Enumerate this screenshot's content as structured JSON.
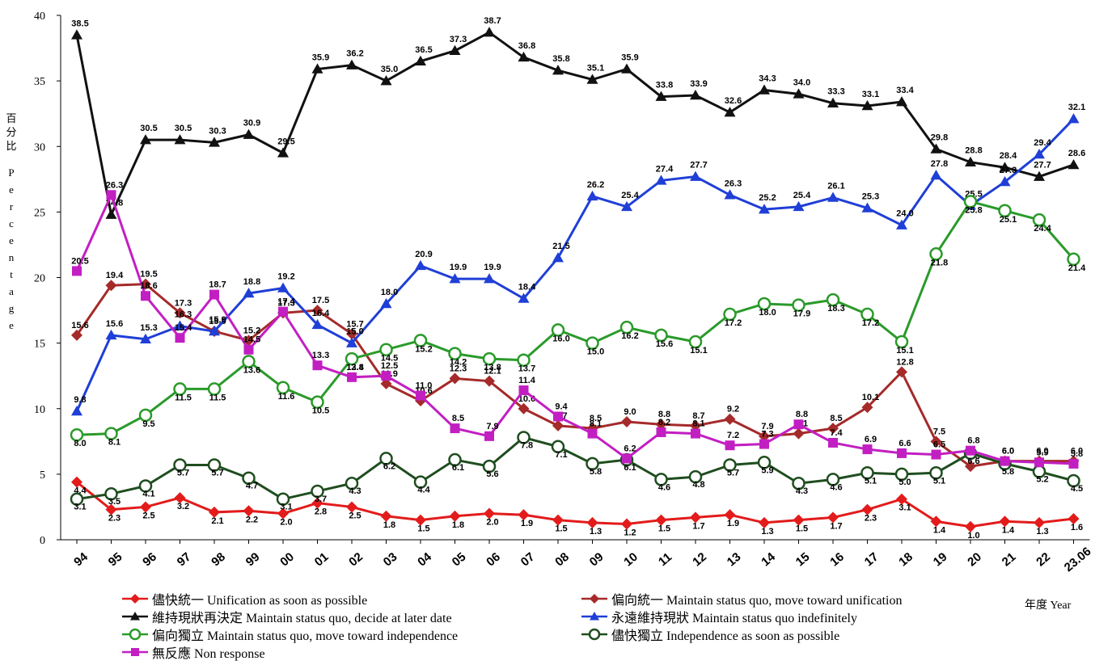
{
  "chart_data": {
    "type": "line",
    "ylabel_cn": "百分比",
    "ylabel": "Percentage",
    "xlabel": "年度 Year",
    "ylim": [
      0,
      40
    ],
    "yticks": [
      0,
      5,
      10,
      15,
      20,
      25,
      30,
      35,
      40
    ],
    "grid": false,
    "legend_position": "bottom",
    "categories": [
      "94",
      "95",
      "96",
      "97",
      "98",
      "99",
      "00",
      "01",
      "02",
      "03",
      "04",
      "05",
      "06",
      "07",
      "08",
      "09",
      "10",
      "11",
      "12",
      "13",
      "14",
      "15",
      "16",
      "17",
      "18",
      "19",
      "20",
      "21",
      "22",
      "23.06"
    ],
    "series": [
      {
        "name": "儘快統一 Unification as soon as possible",
        "color": "#e31b1b",
        "marker": "diamond",
        "values": [
          4.4,
          2.3,
          2.5,
          3.2,
          2.1,
          2.2,
          2.0,
          2.8,
          2.5,
          1.8,
          1.5,
          1.8,
          2.0,
          1.9,
          1.5,
          1.3,
          1.2,
          1.5,
          1.7,
          1.9,
          1.3,
          1.5,
          1.7,
          2.3,
          3.1,
          1.4,
          1.0,
          1.4,
          1.3,
          1.6
        ]
      },
      {
        "name": "偏向統一 Maintain status quo, move toward unification",
        "color": "#a52a2a",
        "marker": "diamond",
        "values": [
          15.6,
          19.4,
          19.5,
          17.3,
          15.9,
          15.2,
          17.3,
          17.5,
          15.7,
          11.9,
          10.6,
          12.3,
          12.1,
          10.0,
          8.7,
          8.5,
          9.0,
          8.8,
          8.7,
          9.2,
          7.9,
          8.1,
          8.5,
          10.1,
          12.8,
          7.5,
          5.6,
          6.0,
          6.0,
          6.0
        ]
      },
      {
        "name": "維持現狀再決定 Maintain status quo, decide at later date",
        "color": "#111111",
        "marker": "triangle",
        "values": [
          38.5,
          24.8,
          30.5,
          30.5,
          30.3,
          30.9,
          29.5,
          35.9,
          36.2,
          35.0,
          36.5,
          37.3,
          38.7,
          36.8,
          35.8,
          35.1,
          35.9,
          33.8,
          33.9,
          32.6,
          34.3,
          34.0,
          33.3,
          33.1,
          33.4,
          29.8,
          28.8,
          28.4,
          27.7,
          28.6
        ]
      },
      {
        "name": "永遠維持現狀 Maintain status quo indefinitely",
        "color": "#1f3fd6",
        "marker": "triangle",
        "values": [
          9.8,
          15.6,
          15.3,
          16.3,
          15.9,
          18.8,
          19.2,
          16.4,
          15.0,
          18.0,
          20.9,
          19.9,
          19.9,
          18.4,
          21.5,
          26.2,
          25.4,
          27.4,
          27.7,
          26.3,
          25.2,
          25.4,
          26.1,
          25.3,
          24.0,
          27.8,
          25.5,
          27.3,
          29.4,
          32.1
        ]
      },
      {
        "name": "偏向獨立 Maintain status quo, move toward independence",
        "color": "#2a9a2a",
        "marker": "circle",
        "values": [
          8.0,
          8.1,
          9.5,
          11.5,
          11.5,
          13.6,
          11.6,
          10.5,
          13.8,
          14.5,
          15.2,
          14.2,
          13.8,
          13.7,
          16.0,
          15.0,
          16.2,
          15.6,
          15.1,
          17.2,
          18.0,
          17.9,
          18.3,
          17.2,
          15.1,
          21.8,
          25.8,
          25.1,
          24.4,
          21.4
        ]
      },
      {
        "name": "儘快獨立 Independence as soon as possible",
        "color": "#1f4d1f",
        "marker": "circle",
        "values": [
          3.1,
          3.5,
          4.1,
          5.7,
          5.7,
          4.7,
          3.1,
          3.7,
          4.3,
          6.2,
          4.4,
          6.1,
          5.6,
          7.8,
          7.1,
          5.8,
          6.1,
          4.6,
          4.8,
          5.7,
          5.9,
          4.3,
          4.6,
          5.1,
          5.0,
          5.1,
          6.6,
          5.8,
          5.2,
          4.5
        ]
      },
      {
        "name": "無反應 Non response",
        "color": "#c21fc2",
        "marker": "square",
        "values": [
          20.5,
          26.3,
          18.6,
          15.4,
          18.7,
          14.5,
          17.4,
          13.3,
          12.4,
          12.5,
          11.0,
          8.5,
          7.9,
          11.4,
          9.4,
          8.1,
          6.2,
          8.2,
          8.1,
          7.2,
          7.3,
          8.8,
          7.4,
          6.9,
          6.6,
          6.5,
          6.8,
          6.0,
          5.9,
          5.8
        ]
      }
    ]
  }
}
